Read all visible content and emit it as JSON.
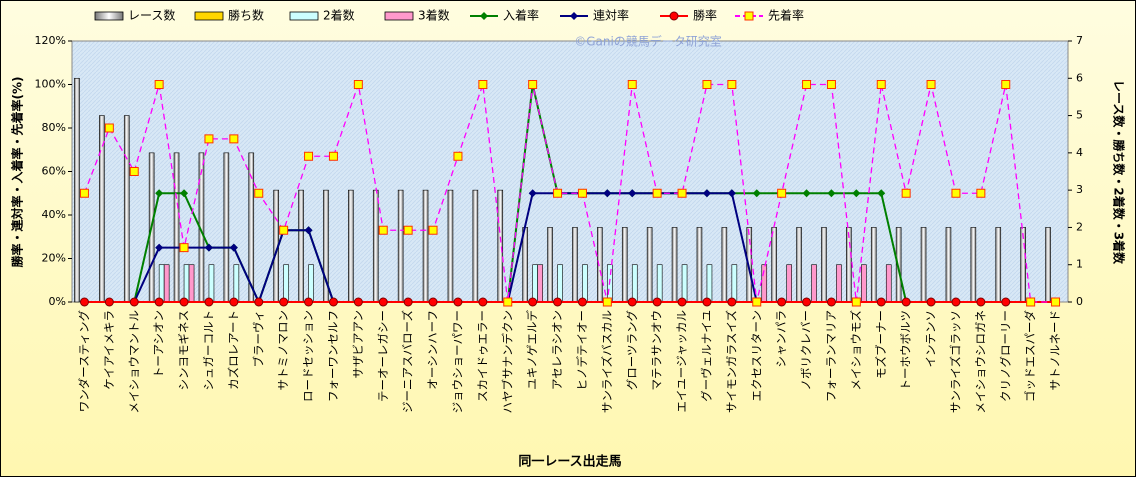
{
  "chart_data": {
    "type": "combo",
    "watermark": "©Ganiの競馬データ研究室",
    "xlabel": "同一レース出走馬",
    "ylabel": "勝率・連対率・入着率・先着率(%)",
    "y2label": "レース数・勝ち数・2着数・3着数",
    "categories": [
      "ワンダースティング",
      "ケイアイメキラ",
      "メイショウマントル",
      "トーアシオン",
      "シンヨモギネス",
      "シュガーコルト",
      "カズロレアート",
      "ブラーヴィ",
      "サトミノマロン",
      "ロードセッション",
      "フォーワンセルフ",
      "サザビアアン",
      "テーオーレガシー",
      "ジーニアスバローズ",
      "オーシンハーフ",
      "ジョウショーパワー",
      "スカイドゥエラー",
      "ハヤブサナンデクン",
      "ユキノゲエルデ",
      "アセレラシオン",
      "ヒノデテイオー",
      "サンライズバスカル",
      "グローツラング",
      "マテラサンオウ",
      "エイユージャッカル",
      "グーヴェルナイユ",
      "サイモンガラスイズ",
      "エクセスリターン",
      "シャンパラ",
      "ノボリクレバー",
      "フォーランマリア",
      "メイショウモズ",
      "モズブーナー",
      "トーホウボルツ",
      "インテンソ",
      "サンライズゴラッソ",
      "メイショウシロガネ",
      "クリノグローリー",
      "ゴッドエスパーダ",
      "サトノルネード"
    ],
    "ylim": [
      0,
      120
    ],
    "yticks": [
      {
        "value": 0,
        "label": "0%"
      },
      {
        "value": 20,
        "label": "20%"
      },
      {
        "value": 40,
        "label": "40%"
      },
      {
        "value": 60,
        "label": "60%"
      },
      {
        "value": 80,
        "label": "80%"
      },
      {
        "value": 100,
        "label": "100%"
      },
      {
        "value": 120,
        "label": "120%"
      }
    ],
    "y2lim": [
      0,
      7
    ],
    "y2ticks": [
      0,
      1,
      2,
      3,
      4,
      5,
      6,
      7
    ],
    "series": [
      {
        "name": "レース数",
        "type": "bar",
        "axis": "y2",
        "color": "#ffffff",
        "values": [
          6,
          5,
          5,
          4,
          4,
          4,
          4,
          4,
          3,
          3,
          3,
          3,
          3,
          3,
          3,
          3,
          3,
          3,
          2,
          2,
          2,
          2,
          2,
          2,
          2,
          2,
          2,
          2,
          2,
          2,
          2,
          2,
          2,
          2,
          2,
          2,
          2,
          2,
          2,
          2
        ]
      },
      {
        "name": "勝ち数",
        "type": "bar",
        "axis": "y2",
        "color": "#ffd700",
        "values": [
          0,
          0,
          0,
          0,
          0,
          0,
          0,
          0,
          0,
          0,
          0,
          0,
          0,
          0,
          0,
          0,
          0,
          0,
          0,
          0,
          0,
          0,
          0,
          0,
          0,
          0,
          0,
          0,
          0,
          0,
          0,
          0,
          0,
          0,
          0,
          0,
          0,
          0,
          0,
          0
        ]
      },
      {
        "name": "2着数",
        "type": "bar",
        "axis": "y2",
        "color": "#ccffff",
        "values": [
          0,
          0,
          0,
          1,
          1,
          1,
          1,
          0,
          1,
          1,
          0,
          0,
          0,
          0,
          0,
          0,
          0,
          0,
          1,
          1,
          1,
          1,
          1,
          1,
          1,
          1,
          1,
          0,
          0,
          0,
          0,
          0,
          0,
          0,
          0,
          0,
          0,
          0,
          0,
          0
        ]
      },
      {
        "name": "3着数",
        "type": "bar",
        "axis": "y2",
        "color": "#ff99cc",
        "values": [
          0,
          0,
          0,
          1,
          1,
          0,
          0,
          0,
          0,
          0,
          0,
          0,
          0,
          0,
          0,
          0,
          0,
          0,
          1,
          0,
          0,
          0,
          0,
          0,
          0,
          0,
          0,
          1,
          1,
          1,
          1,
          1,
          1,
          0,
          0,
          0,
          0,
          0,
          0,
          0
        ]
      },
      {
        "name": "入着率",
        "type": "line",
        "color": "#008000",
        "marker": "diamond",
        "dashed": false,
        "values": [
          0,
          0,
          0,
          50,
          50,
          25,
          25,
          0,
          33,
          33,
          0,
          0,
          0,
          0,
          0,
          0,
          0,
          0,
          100,
          50,
          50,
          50,
          50,
          50,
          50,
          50,
          50,
          50,
          50,
          50,
          50,
          50,
          50,
          0,
          0,
          0,
          0,
          0,
          0,
          0
        ]
      },
      {
        "name": "連対率",
        "type": "line",
        "color": "#000080",
        "marker": "diamond",
        "dashed": false,
        "values": [
          0,
          0,
          0,
          25,
          25,
          25,
          25,
          0,
          33,
          33,
          0,
          0,
          0,
          0,
          0,
          0,
          0,
          0,
          50,
          50,
          50,
          50,
          50,
          50,
          50,
          50,
          50,
          0,
          0,
          0,
          0,
          0,
          0,
          0,
          0,
          0,
          0,
          0,
          0,
          0
        ]
      },
      {
        "name": "勝率",
        "type": "line",
        "color": "#ff0000",
        "marker": "circle",
        "dashed": false,
        "values": [
          0,
          0,
          0,
          0,
          0,
          0,
          0,
          0,
          0,
          0,
          0,
          0,
          0,
          0,
          0,
          0,
          0,
          0,
          0,
          0,
          0,
          0,
          0,
          0,
          0,
          0,
          0,
          0,
          0,
          0,
          0,
          0,
          0,
          0,
          0,
          0,
          0,
          0,
          0,
          0
        ]
      },
      {
        "name": "先着率",
        "type": "line",
        "color": "#ff00ff",
        "marker": "square",
        "dashed": true,
        "values": [
          50,
          80,
          60,
          100,
          25,
          75,
          75,
          50,
          33,
          67,
          67,
          100,
          33,
          33,
          33,
          67,
          100,
          0,
          100,
          50,
          50,
          0,
          100,
          50,
          50,
          100,
          100,
          0,
          50,
          100,
          100,
          0,
          100,
          50,
          100,
          50,
          50,
          100,
          0,
          0
        ]
      }
    ]
  }
}
